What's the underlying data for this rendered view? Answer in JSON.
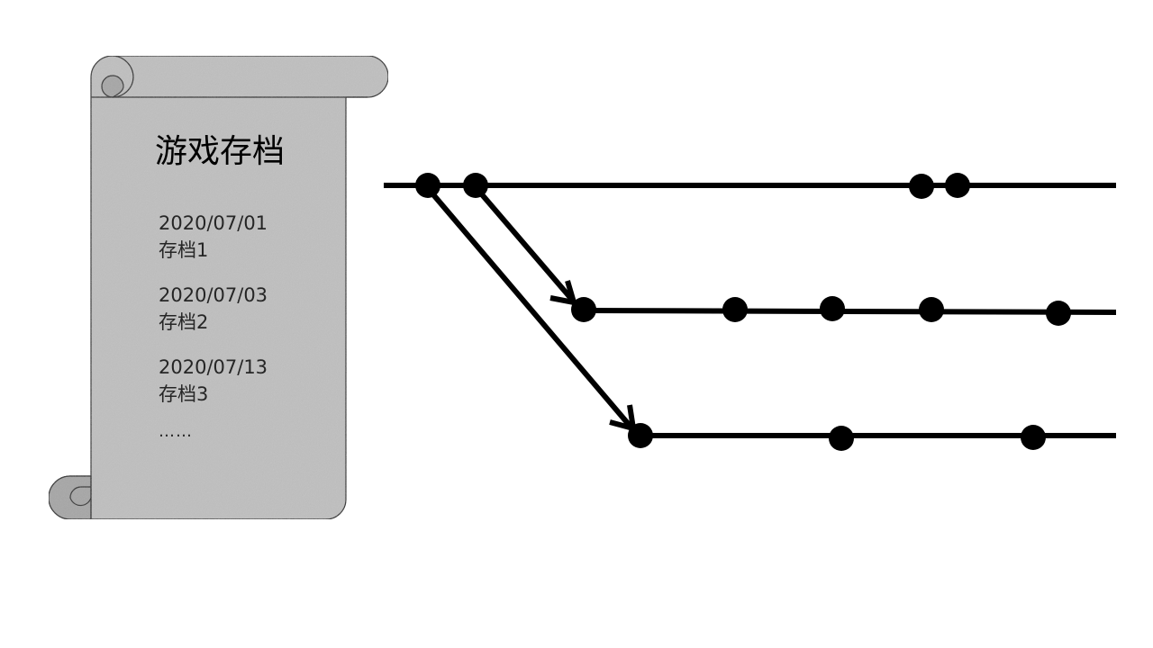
{
  "scroll": {
    "title": "游戏存档",
    "saves": [
      {
        "date": "2020/07/01",
        "name": "存档1"
      },
      {
        "date": "2020/07/03",
        "name": "存档2"
      },
      {
        "date": "2020/07/13",
        "name": "存档3"
      }
    ],
    "more": "……"
  },
  "colors": {
    "scroll_fill": "#bfbfbf",
    "scroll_curl": "#a6a6a6",
    "line": "#000000",
    "background": "#ffffff"
  }
}
